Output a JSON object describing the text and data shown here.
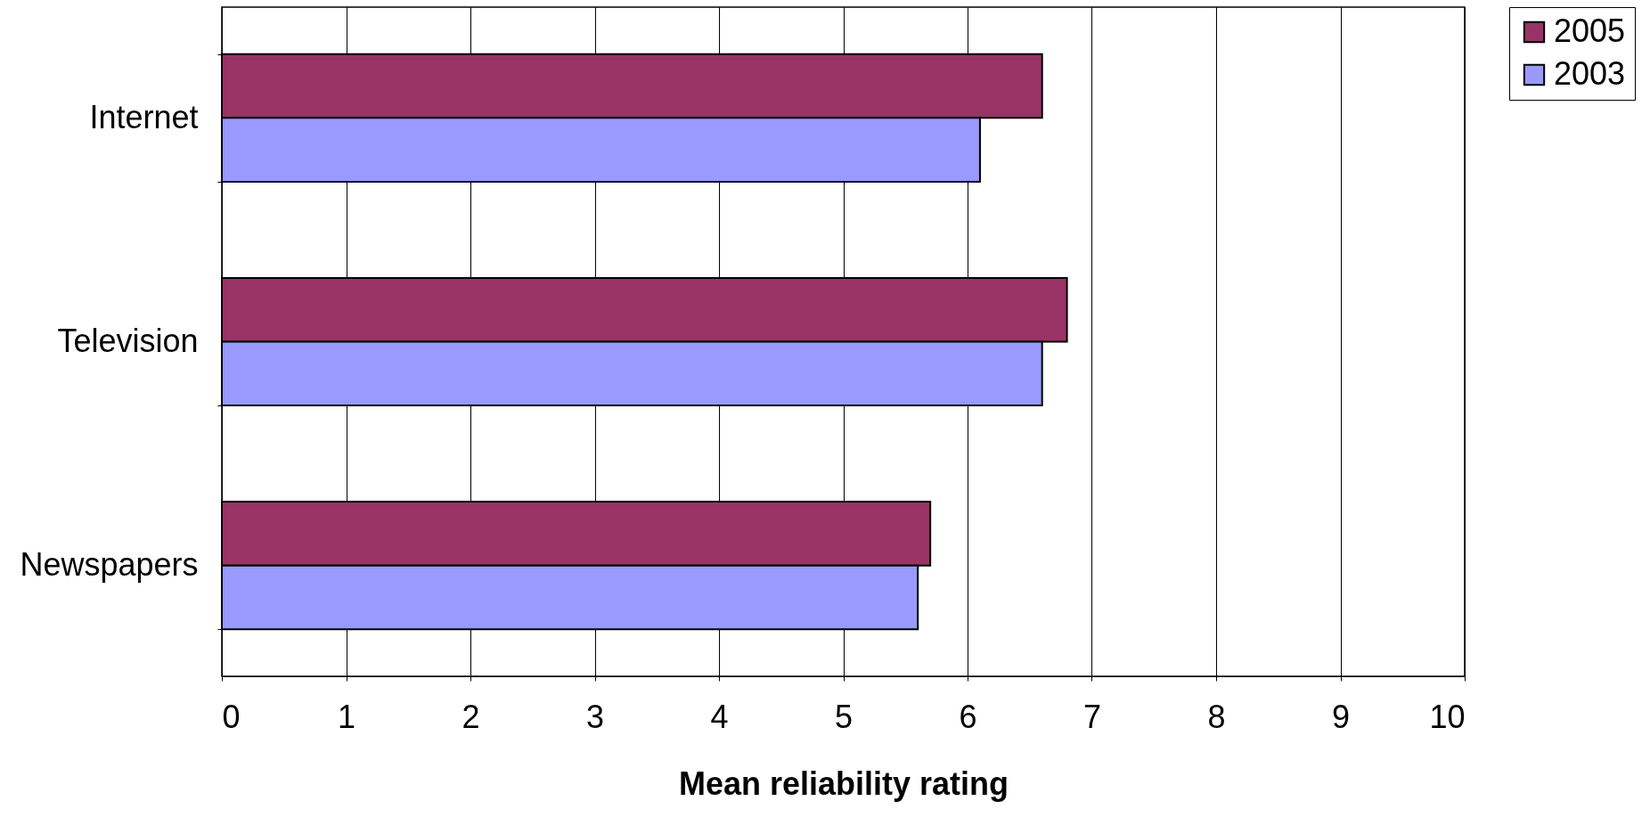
{
  "chart_data": {
    "type": "bar",
    "orientation": "horizontal",
    "xlabel": "Mean reliability rating",
    "categories": [
      "Internet",
      "Television",
      "Newspapers"
    ],
    "series": [
      {
        "name": "2005",
        "color": "#993366",
        "values": [
          6.6,
          6.8,
          5.7
        ]
      },
      {
        "name": "2003",
        "color": "#9999ff",
        "values": [
          6.1,
          6.6,
          5.6
        ]
      }
    ],
    "xlim": [
      0,
      10
    ],
    "xticks": [
      0,
      1,
      2,
      3,
      4,
      5,
      6,
      7,
      8,
      9,
      10
    ],
    "grid": "x",
    "legend": "right"
  }
}
